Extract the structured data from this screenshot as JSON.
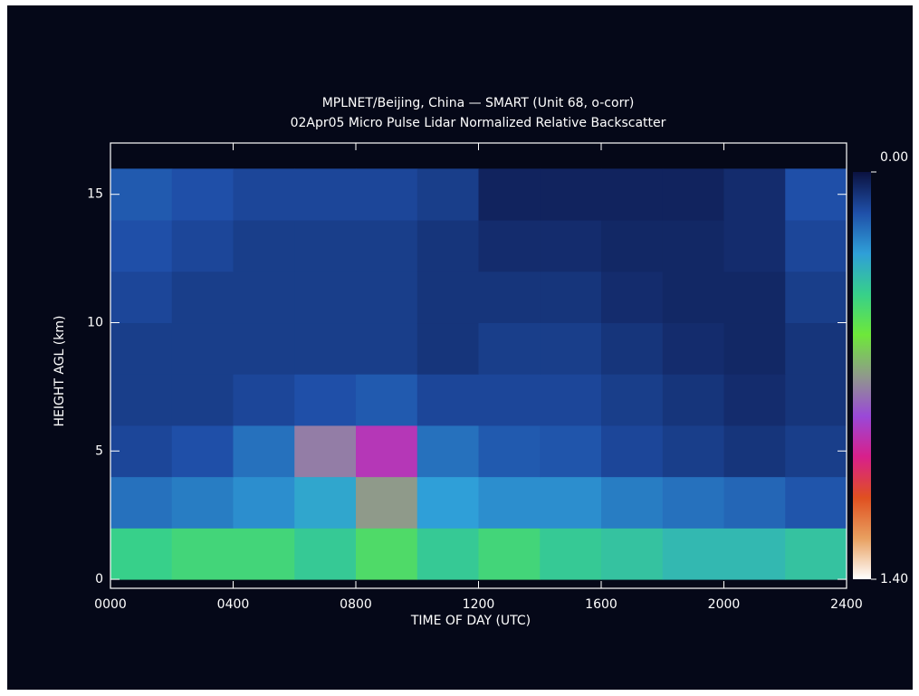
{
  "chart_data": {
    "type": "heatmap",
    "title": "MPLNET/Beijing, China — SMART (Unit 68, o-corr)",
    "subtitle": "02Apr05 Micro Pulse Lidar Normalized Relative Backscatter",
    "x_label": "TIME OF DAY (UTC)",
    "y_label": "HEIGHT AGL (km)",
    "xlim": [
      0,
      2400
    ],
    "ylim": [
      -0.35,
      17
    ],
    "xticks": [
      {
        "value": 0,
        "label": "0000"
      },
      {
        "value": 400,
        "label": "0400"
      },
      {
        "value": 800,
        "label": "0800"
      },
      {
        "value": 1200,
        "label": "1200"
      },
      {
        "value": 1600,
        "label": "1600"
      },
      {
        "value": 2000,
        "label": "2000"
      },
      {
        "value": 2400,
        "label": "2400"
      }
    ],
    "yticks": [
      0,
      5,
      10,
      15
    ],
    "xbins": [
      0,
      200,
      400,
      600,
      800,
      1000,
      1200,
      1400,
      1600,
      1800,
      2000,
      2200,
      2400
    ],
    "ybins": [
      0,
      2,
      4,
      6,
      8,
      10,
      12,
      14,
      16
    ],
    "z": [
      [
        0.42,
        0.45,
        0.45,
        0.4,
        0.48,
        0.4,
        0.45,
        0.4,
        0.38,
        0.35,
        0.35,
        0.38
      ],
      [
        0.2,
        0.22,
        0.25,
        0.3,
        0.7,
        0.28,
        0.25,
        0.25,
        0.22,
        0.2,
        0.18,
        0.15
      ],
      [
        0.12,
        0.14,
        0.2,
        0.75,
        0.9,
        0.2,
        0.16,
        0.15,
        0.12,
        0.1,
        0.08,
        0.1
      ],
      [
        0.1,
        0.1,
        0.12,
        0.14,
        0.16,
        0.12,
        0.12,
        0.12,
        0.1,
        0.08,
        0.06,
        0.08
      ],
      [
        0.1,
        0.1,
        0.1,
        0.1,
        0.1,
        0.08,
        0.1,
        0.1,
        0.08,
        0.06,
        0.05,
        0.08
      ],
      [
        0.12,
        0.1,
        0.1,
        0.1,
        0.1,
        0.08,
        0.08,
        0.08,
        0.06,
        0.05,
        0.05,
        0.1
      ],
      [
        0.14,
        0.12,
        0.1,
        0.1,
        0.1,
        0.08,
        0.06,
        0.06,
        0.05,
        0.05,
        0.06,
        0.12
      ],
      [
        0.16,
        0.14,
        0.12,
        0.12,
        0.12,
        0.1,
        0.04,
        0.04,
        0.04,
        0.04,
        0.06,
        0.14
      ]
    ],
    "clim": [
      {
        "value": 0,
        "label": "0.00"
      },
      {
        "value": 1.4,
        "label": "1.40"
      }
    ],
    "colormap": [
      "#0b1240",
      "#1f4fa8",
      "#2f9fd8",
      "#37d08a",
      "#6ee83a",
      "#8f9a8a",
      "#9a48d8",
      "#d8208a",
      "#e05020",
      "#e8a060",
      "#ffffff"
    ]
  }
}
